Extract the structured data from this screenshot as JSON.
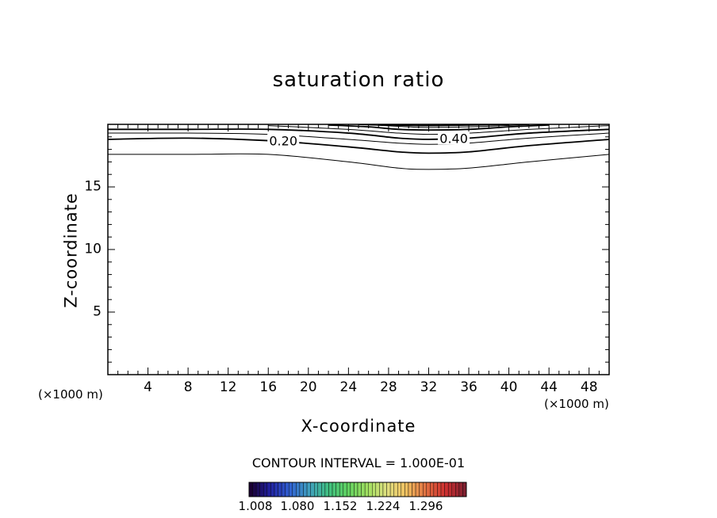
{
  "chart_data": {
    "type": "contour",
    "title": "saturation ratio",
    "xlabel": "X-coordinate",
    "ylabel": "Z-coordinate",
    "x_unit_label": "(×1000 m)",
    "x_ticks": [
      4,
      8,
      12,
      16,
      20,
      24,
      28,
      32,
      36,
      40,
      44,
      48
    ],
    "y_ticks": [
      5,
      10,
      15
    ],
    "xlim": [
      0,
      50
    ],
    "ylim": [
      0,
      20
    ],
    "contour_interval_label": "CONTOUR INTERVAL = 1.000E-01",
    "contour_labels": [
      {
        "text": "0.20",
        "x": 17.5,
        "z": 18.7
      },
      {
        "text": "0.40",
        "x": 34.5,
        "z": 18.9
      }
    ],
    "contours": [
      {
        "level": 0.1,
        "x": [
          0,
          8,
          16,
          24,
          29,
          32,
          36,
          42,
          50
        ],
        "z": [
          17.6,
          17.6,
          17.6,
          17.0,
          16.5,
          16.4,
          16.5,
          17.0,
          17.6
        ]
      },
      {
        "level": 0.2,
        "x": [
          0,
          8,
          16,
          24,
          29,
          32,
          36,
          42,
          50
        ],
        "z": [
          18.8,
          18.9,
          18.7,
          18.2,
          17.8,
          17.7,
          17.8,
          18.3,
          18.8
        ]
      },
      {
        "level": 0.3,
        "x": [
          0,
          8,
          16,
          24,
          29,
          32,
          36,
          42,
          50
        ],
        "z": [
          19.3,
          19.3,
          19.2,
          18.8,
          18.5,
          18.4,
          18.5,
          18.9,
          19.3
        ]
      },
      {
        "level": 0.4,
        "x": [
          0,
          8,
          16,
          24,
          29,
          32,
          36,
          42,
          50
        ],
        "z": [
          19.6,
          19.6,
          19.6,
          19.3,
          18.9,
          18.8,
          18.9,
          19.3,
          19.6
        ]
      },
      {
        "level": 0.5,
        "x": [
          16,
          24,
          29,
          32,
          36,
          42,
          50
        ],
        "z": [
          19.9,
          19.6,
          19.3,
          19.2,
          19.3,
          19.6,
          19.9
        ]
      },
      {
        "level": 0.6,
        "x": [
          22,
          26,
          29,
          32,
          36,
          40,
          44
        ],
        "z": [
          19.95,
          19.8,
          19.6,
          19.55,
          19.6,
          19.8,
          19.95
        ]
      },
      {
        "level": 0.7,
        "x": [
          25,
          28,
          30,
          32,
          36,
          39,
          42
        ],
        "z": [
          19.98,
          19.88,
          19.8,
          19.75,
          19.8,
          19.88,
          19.98
        ]
      },
      {
        "level": 0.8,
        "x": [
          27,
          29,
          32,
          35,
          38,
          40
        ],
        "z": [
          19.99,
          19.93,
          19.9,
          19.93,
          19.97,
          19.99
        ]
      }
    ],
    "colorbar": {
      "ticks": [
        "1.008",
        "1.080",
        "1.152",
        "1.224",
        "1.296"
      ],
      "colors": [
        "#1a0033",
        "#2020a0",
        "#3060d0",
        "#40a0c0",
        "#40c080",
        "#60d060",
        "#a0e060",
        "#e0e080",
        "#f0c060",
        "#e07040",
        "#d03030",
        "#802030"
      ]
    }
  }
}
